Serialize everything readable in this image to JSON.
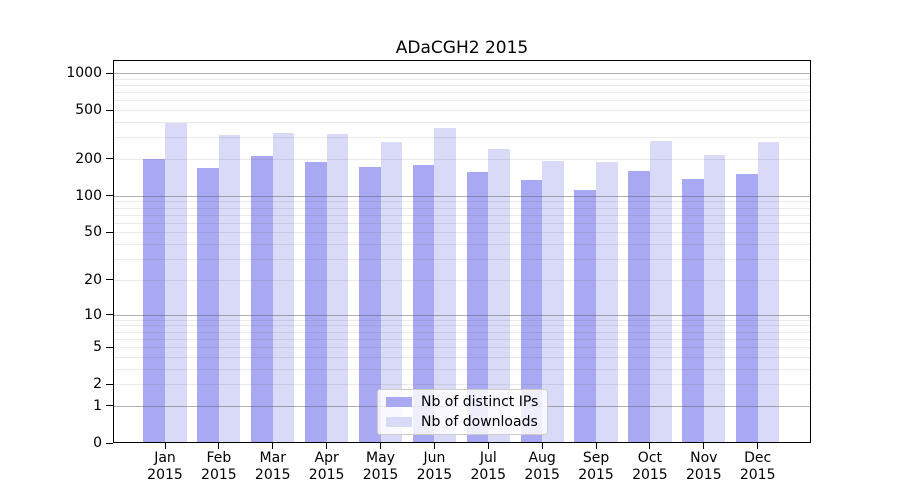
{
  "chart_data": {
    "type": "bar",
    "title": "ADaCGH2 2015",
    "categories": [
      "Jan",
      "Feb",
      "Mar",
      "Apr",
      "May",
      "Jun",
      "Jul",
      "Aug",
      "Sep",
      "Oct",
      "Nov",
      "Dec"
    ],
    "year_label": "2015",
    "series": [
      {
        "name": "Nb of distinct IPs",
        "color": "#a9a9f3",
        "values": [
          200,
          170,
          212,
          190,
          171,
          179,
          158,
          136,
          112,
          161,
          138,
          151
        ]
      },
      {
        "name": "Nb of downloads",
        "color": "#d9d9f8",
        "values": [
          389,
          316,
          328,
          320,
          275,
          356,
          241,
          192,
          188,
          282,
          216,
          274
        ]
      }
    ],
    "yscale": "log1p",
    "yticks": [
      1000,
      500,
      200,
      100,
      50,
      20,
      10,
      5,
      2,
      1,
      0
    ],
    "ylim": [
      0,
      1285
    ],
    "grid": "on",
    "legend_position": "inside-bottom-center",
    "colors": {
      "grid_major": "#b0b0b0",
      "grid_minor": "#eaeaea",
      "axis": "#000000",
      "background": "#ffffff",
      "text": "#000000"
    }
  }
}
